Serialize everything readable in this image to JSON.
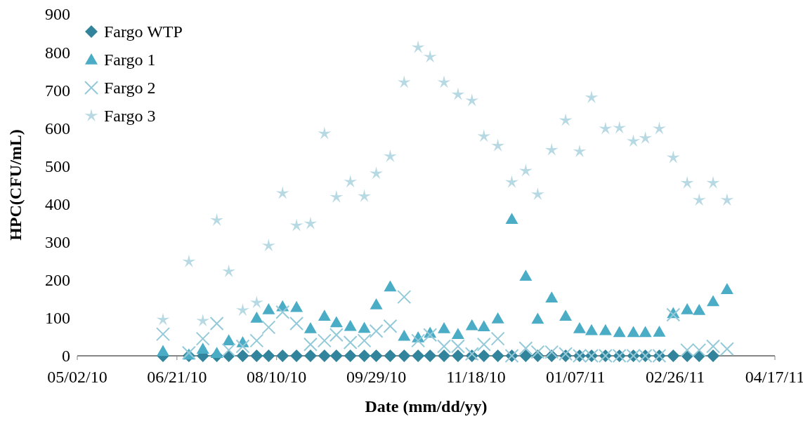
{
  "chart_data": {
    "type": "scatter",
    "xlabel": "Date (mm/dd/yy)",
    "ylabel": "HPC(CFU/mL)",
    "x": [
      "2010-06-14",
      "2010-06-27",
      "2010-07-04",
      "2010-07-11",
      "2010-07-17",
      "2010-07-24",
      "2010-07-31",
      "2010-08-06",
      "2010-08-13",
      "2010-08-20",
      "2010-08-27",
      "2010-09-03",
      "2010-09-09",
      "2010-09-16",
      "2010-09-23",
      "2010-09-29",
      "2010-10-06",
      "2010-10-13",
      "2010-10-20",
      "2010-10-26",
      "2010-11-02",
      "2010-11-09",
      "2010-11-16",
      "2010-11-22",
      "2010-11-29",
      "2010-12-06",
      "2010-12-13",
      "2010-12-19",
      "2010-12-26",
      "2011-01-02",
      "2011-01-09",
      "2011-01-15",
      "2011-01-22",
      "2011-01-29",
      "2011-02-05",
      "2011-02-11",
      "2011-02-18",
      "2011-02-25",
      "2011-03-04",
      "2011-03-10",
      "2011-03-17",
      "2011-03-24"
    ],
    "series": [
      {
        "name": "Fargo WTP",
        "color": "#31849b",
        "marker": "diamond",
        "values": [
          0,
          0,
          0,
          0,
          0,
          0,
          0,
          0,
          0,
          0,
          0,
          0,
          0,
          0,
          0,
          0,
          0,
          0,
          0,
          0,
          0,
          0,
          0,
          0,
          0,
          0,
          0,
          0,
          0,
          0,
          0,
          0,
          0,
          0,
          0,
          0,
          0,
          0,
          0,
          0,
          0,
          null
        ]
      },
      {
        "name": "Fargo 1",
        "color": "#4bacc6",
        "marker": "triangle",
        "values": [
          12,
          3,
          18,
          7,
          40,
          35,
          100,
          122,
          130,
          128,
          72,
          105,
          88,
          78,
          73,
          135,
          182,
          52,
          48,
          60,
          72,
          57,
          80,
          77,
          98,
          360,
          210,
          97,
          153,
          105,
          72,
          67,
          67,
          62,
          62,
          62,
          63,
          112,
          122,
          120,
          143,
          175
        ]
      },
      {
        "name": "Fargo 2",
        "color": "#93c9d9",
        "marker": "cross",
        "values": [
          57,
          8,
          45,
          85,
          15,
          25,
          40,
          75,
          115,
          85,
          30,
          40,
          55,
          35,
          40,
          65,
          78,
          155,
          40,
          55,
          25,
          25,
          5,
          30,
          45,
          0,
          20,
          10,
          10,
          5,
          0,
          0,
          0,
          0,
          0,
          0,
          0,
          108,
          15,
          15,
          25,
          18
        ]
      },
      {
        "name": "Fargo 3",
        "color": "#b7d9e3",
        "marker": "star",
        "values": [
          95,
          248,
          92,
          357,
          222,
          120,
          140,
          290,
          428,
          343,
          348,
          585,
          418,
          458,
          420,
          480,
          525,
          720,
          812,
          787,
          720,
          688,
          672,
          578,
          553,
          457,
          487,
          425,
          542,
          620,
          538,
          680,
          598,
          600,
          565,
          573,
          598,
          522,
          455,
          410,
          455,
          410
        ]
      }
    ],
    "xlim": [
      "2010-05-02",
      "2011-04-17"
    ],
    "xticks": [
      {
        "value": "2010-05-02",
        "label": "05/02/10"
      },
      {
        "value": "2010-06-21",
        "label": "06/21/10"
      },
      {
        "value": "2010-08-10",
        "label": "08/10/10"
      },
      {
        "value": "2010-09-29",
        "label": "09/29/10"
      },
      {
        "value": "2010-11-18",
        "label": "11/18/10"
      },
      {
        "value": "2011-01-07",
        "label": "01/07/11"
      },
      {
        "value": "2011-02-26",
        "label": "02/26/11"
      },
      {
        "value": "2011-04-17",
        "label": "04/17/11"
      }
    ],
    "ylim": [
      0,
      900
    ],
    "yticks": [
      0,
      100,
      200,
      300,
      400,
      500,
      600,
      700,
      800,
      900
    ],
    "legend": "top left"
  }
}
